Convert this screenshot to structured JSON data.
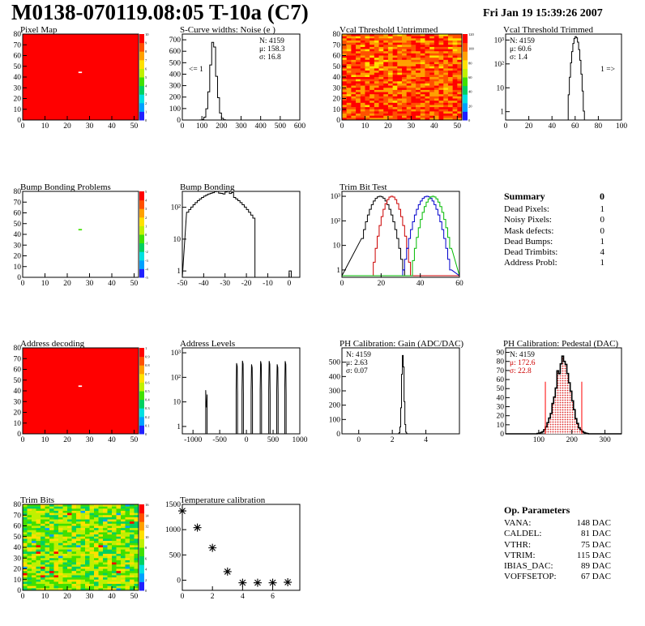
{
  "header": {
    "title": "M0138-070119.08:05 T-10a (C7)",
    "datetime": "Fri Jan 19 15:39:26 2007"
  },
  "colors": {
    "red": "#ff0000",
    "accent_red": "#cc0000",
    "blue": "#0000cc",
    "green": "#00bb00"
  },
  "chart_data": [
    {
      "id": "pixel-map",
      "type": "heatmap",
      "title": "Pixel Map",
      "xlim": [
        0,
        52
      ],
      "ylim": [
        0,
        80
      ],
      "xticks": [
        "0",
        "10",
        "20",
        "30",
        "40",
        "50"
      ],
      "yticks": [
        "0",
        "10",
        "20",
        "30",
        "40",
        "50",
        "60",
        "70",
        "80"
      ],
      "zticks": [
        "0",
        "1",
        "2",
        "3",
        "4",
        "5",
        "6",
        "7",
        "8",
        "9",
        "10"
      ],
      "fill": "uniform",
      "dead_pixel": [
        25,
        44
      ]
    },
    {
      "id": "noise",
      "type": "bar",
      "title": "S-Curve widths: Noise (e )",
      "xlim": [
        0,
        600
      ],
      "ylim": [
        0,
        750
      ],
      "xticks": [
        "0",
        "100",
        "200",
        "300",
        "400",
        "500",
        "600"
      ],
      "yticks": [
        "0",
        "100",
        "200",
        "300",
        "400",
        "500",
        "600",
        "700"
      ],
      "stats": {
        "n": "N: 4159",
        "mu": "μ: 158.3",
        "sigma": "σ: 16.8"
      },
      "overflow": "<= 1",
      "mean": 158.3,
      "sd": 16.8,
      "peak": 670
    },
    {
      "id": "vcal-untrimmed",
      "type": "heatmap",
      "title": "Vcal Threshold Untrimmed",
      "xlim": [
        0,
        52
      ],
      "ylim": [
        0,
        80
      ],
      "xticks": [
        "0",
        "10",
        "20",
        "30",
        "40",
        "50"
      ],
      "yticks": [
        "0",
        "10",
        "20",
        "30",
        "40",
        "50",
        "60",
        "70",
        "80"
      ],
      "zticks": [
        "0",
        "20",
        "40",
        "60",
        "80",
        "100",
        "120"
      ],
      "fill": "noisy-warm"
    },
    {
      "id": "vcal-trimmed",
      "type": "bar",
      "log": true,
      "title": "Vcal Threshold Trimmed",
      "xlim": [
        0,
        100
      ],
      "xticks": [
        "0",
        "20",
        "40",
        "60",
        "80",
        "100"
      ],
      "yticks": [
        "1",
        "10",
        "10²",
        "10³"
      ],
      "stats": {
        "n": "N: 4159",
        "mu": "μ: 60.6",
        "sigma": "σ: 1.4"
      },
      "overflow": "1 =>",
      "mean": 60.6,
      "sd": 1.4
    },
    {
      "id": "bump-problems",
      "type": "heatmap",
      "title": "Bump Bonding Problems",
      "xlim": [
        0,
        52
      ],
      "ylim": [
        0,
        80
      ],
      "xticks": [
        "0",
        "10",
        "20",
        "30",
        "40",
        "50"
      ],
      "yticks": [
        "0",
        "10",
        "20",
        "30",
        "40",
        "50",
        "60",
        "70",
        "80"
      ],
      "zticks": [
        "-5",
        "-4",
        "-3",
        "-2",
        "-1",
        "0",
        "1",
        "2",
        "3",
        "4",
        "5"
      ],
      "fill": "empty",
      "bad_pixel": [
        25,
        44
      ]
    },
    {
      "id": "bump-bonding",
      "type": "bar",
      "log": true,
      "title": "Bump Bonding",
      "xlim": [
        -50,
        5
      ],
      "xticks": [
        "-50",
        "-40",
        "-30",
        "-20",
        "-10",
        "0"
      ],
      "yticks": [
        "1",
        "10",
        "10²"
      ]
    },
    {
      "id": "trim-bit",
      "type": "line",
      "log": true,
      "title": "Trim Bit Test",
      "xlim": [
        0,
        60
      ],
      "xticks": [
        "0",
        "20",
        "40",
        "60"
      ],
      "yticks": [
        "1",
        "10",
        "10²",
        "10³"
      ]
    },
    {
      "id": "address-decoding",
      "type": "heatmap",
      "title": "Address decoding",
      "xlim": [
        0,
        52
      ],
      "ylim": [
        0,
        80
      ],
      "xticks": [
        "0",
        "10",
        "20",
        "30",
        "40",
        "50"
      ],
      "yticks": [
        "0",
        "10",
        "20",
        "30",
        "40",
        "50",
        "60",
        "70",
        "80"
      ],
      "zticks": [
        "0",
        "0.1",
        "0.2",
        "0.3",
        "0.4",
        "0.5",
        "0.6",
        "0.7",
        "0.8",
        "0.9",
        "1"
      ],
      "fill": "uniform",
      "dead_pixel": [
        25,
        44
      ]
    },
    {
      "id": "address-levels",
      "type": "bar",
      "log": true,
      "title": "Address Levels",
      "xlim": [
        -1200,
        1000
      ],
      "xticks": [
        "-1000",
        "-500",
        "0",
        "500",
        "1000"
      ],
      "yticks": [
        "1",
        "10",
        "10²",
        "10³"
      ],
      "peaks": [
        -750,
        -180,
        -70,
        100,
        270,
        430,
        580,
        730
      ]
    },
    {
      "id": "ph-gain",
      "type": "bar",
      "title": "PH Calibration: Gain (ADC/DAC)",
      "xlim": [
        -1,
        6
      ],
      "ylim": [
        0,
        600
      ],
      "xticks": [
        "0",
        "2",
        "4"
      ],
      "yticks": [
        "0",
        "100",
        "200",
        "300",
        "400",
        "500"
      ],
      "stats": {
        "n": "N: 4159",
        "mu": "μ: 2.63",
        "sigma": "σ: 0.07"
      },
      "mean": 2.63,
      "sd": 0.07,
      "peak": 560
    },
    {
      "id": "ph-pedestal",
      "type": "bar",
      "title": "PH Calibration: Pedestal (DAC)",
      "xlim": [
        0,
        350
      ],
      "ylim": [
        0,
        95
      ],
      "xticks": [
        "100",
        "200",
        "300"
      ],
      "yticks": [
        "0",
        "10",
        "20",
        "30",
        "40",
        "50",
        "60",
        "70",
        "80",
        "90"
      ],
      "stats": {
        "n": "N: 4159",
        "mu": "μ: 172.6",
        "sigma": "σ: 22.8"
      },
      "mean": 172.6,
      "sd": 22.8,
      "peak": 80,
      "cuts": [
        120,
        230
      ]
    },
    {
      "id": "trim-bits",
      "type": "heatmap",
      "title": "Trim Bits",
      "xlim": [
        0,
        52
      ],
      "ylim": [
        0,
        80
      ],
      "xticks": [
        "0",
        "10",
        "20",
        "30",
        "40",
        "50"
      ],
      "yticks": [
        "0",
        "10",
        "20",
        "30",
        "40",
        "50",
        "60",
        "70",
        "80"
      ],
      "zticks": [
        "0",
        "2",
        "4",
        "6",
        "8",
        "10",
        "12",
        "14",
        "16"
      ],
      "fill": "noisy-cool"
    },
    {
      "id": "temperature",
      "type": "scatter",
      "title": "Temperature calibration",
      "xlim": [
        0,
        7.8
      ],
      "ylim": [
        -200,
        1500
      ],
      "xticks": [
        "0",
        "2",
        "4",
        "6"
      ],
      "yticks": [
        "0",
        "500",
        "1000",
        "1500"
      ],
      "x": [
        0,
        1,
        2,
        3,
        4,
        5,
        6,
        7
      ],
      "y": [
        1370,
        1040,
        640,
        170,
        -50,
        -50,
        -50,
        -40
      ]
    }
  ],
  "summary": {
    "title": "Summary",
    "value": "0",
    "items": [
      {
        "label": "Dead Pixels:",
        "value": "1"
      },
      {
        "label": "Noisy Pixels:",
        "value": "0"
      },
      {
        "label": "Mask defects:",
        "value": "0"
      },
      {
        "label": "Dead Bumps:",
        "value": "1"
      },
      {
        "label": "Dead Trimbits:",
        "value": "4"
      },
      {
        "label": "Address Probl:",
        "value": "1"
      }
    ]
  },
  "op_params": {
    "title": "Op. Parameters",
    "items": [
      {
        "label": "VANA:",
        "value": "148 DAC"
      },
      {
        "label": "CALDEL:",
        "value": "81 DAC"
      },
      {
        "label": "VTHR:",
        "value": "75 DAC"
      },
      {
        "label": "VTRIM:",
        "value": "115 DAC"
      },
      {
        "label": "IBIAS_DAC:",
        "value": "89 DAC"
      },
      {
        "label": "VOFFSETOP:",
        "value": "67 DAC"
      }
    ]
  }
}
